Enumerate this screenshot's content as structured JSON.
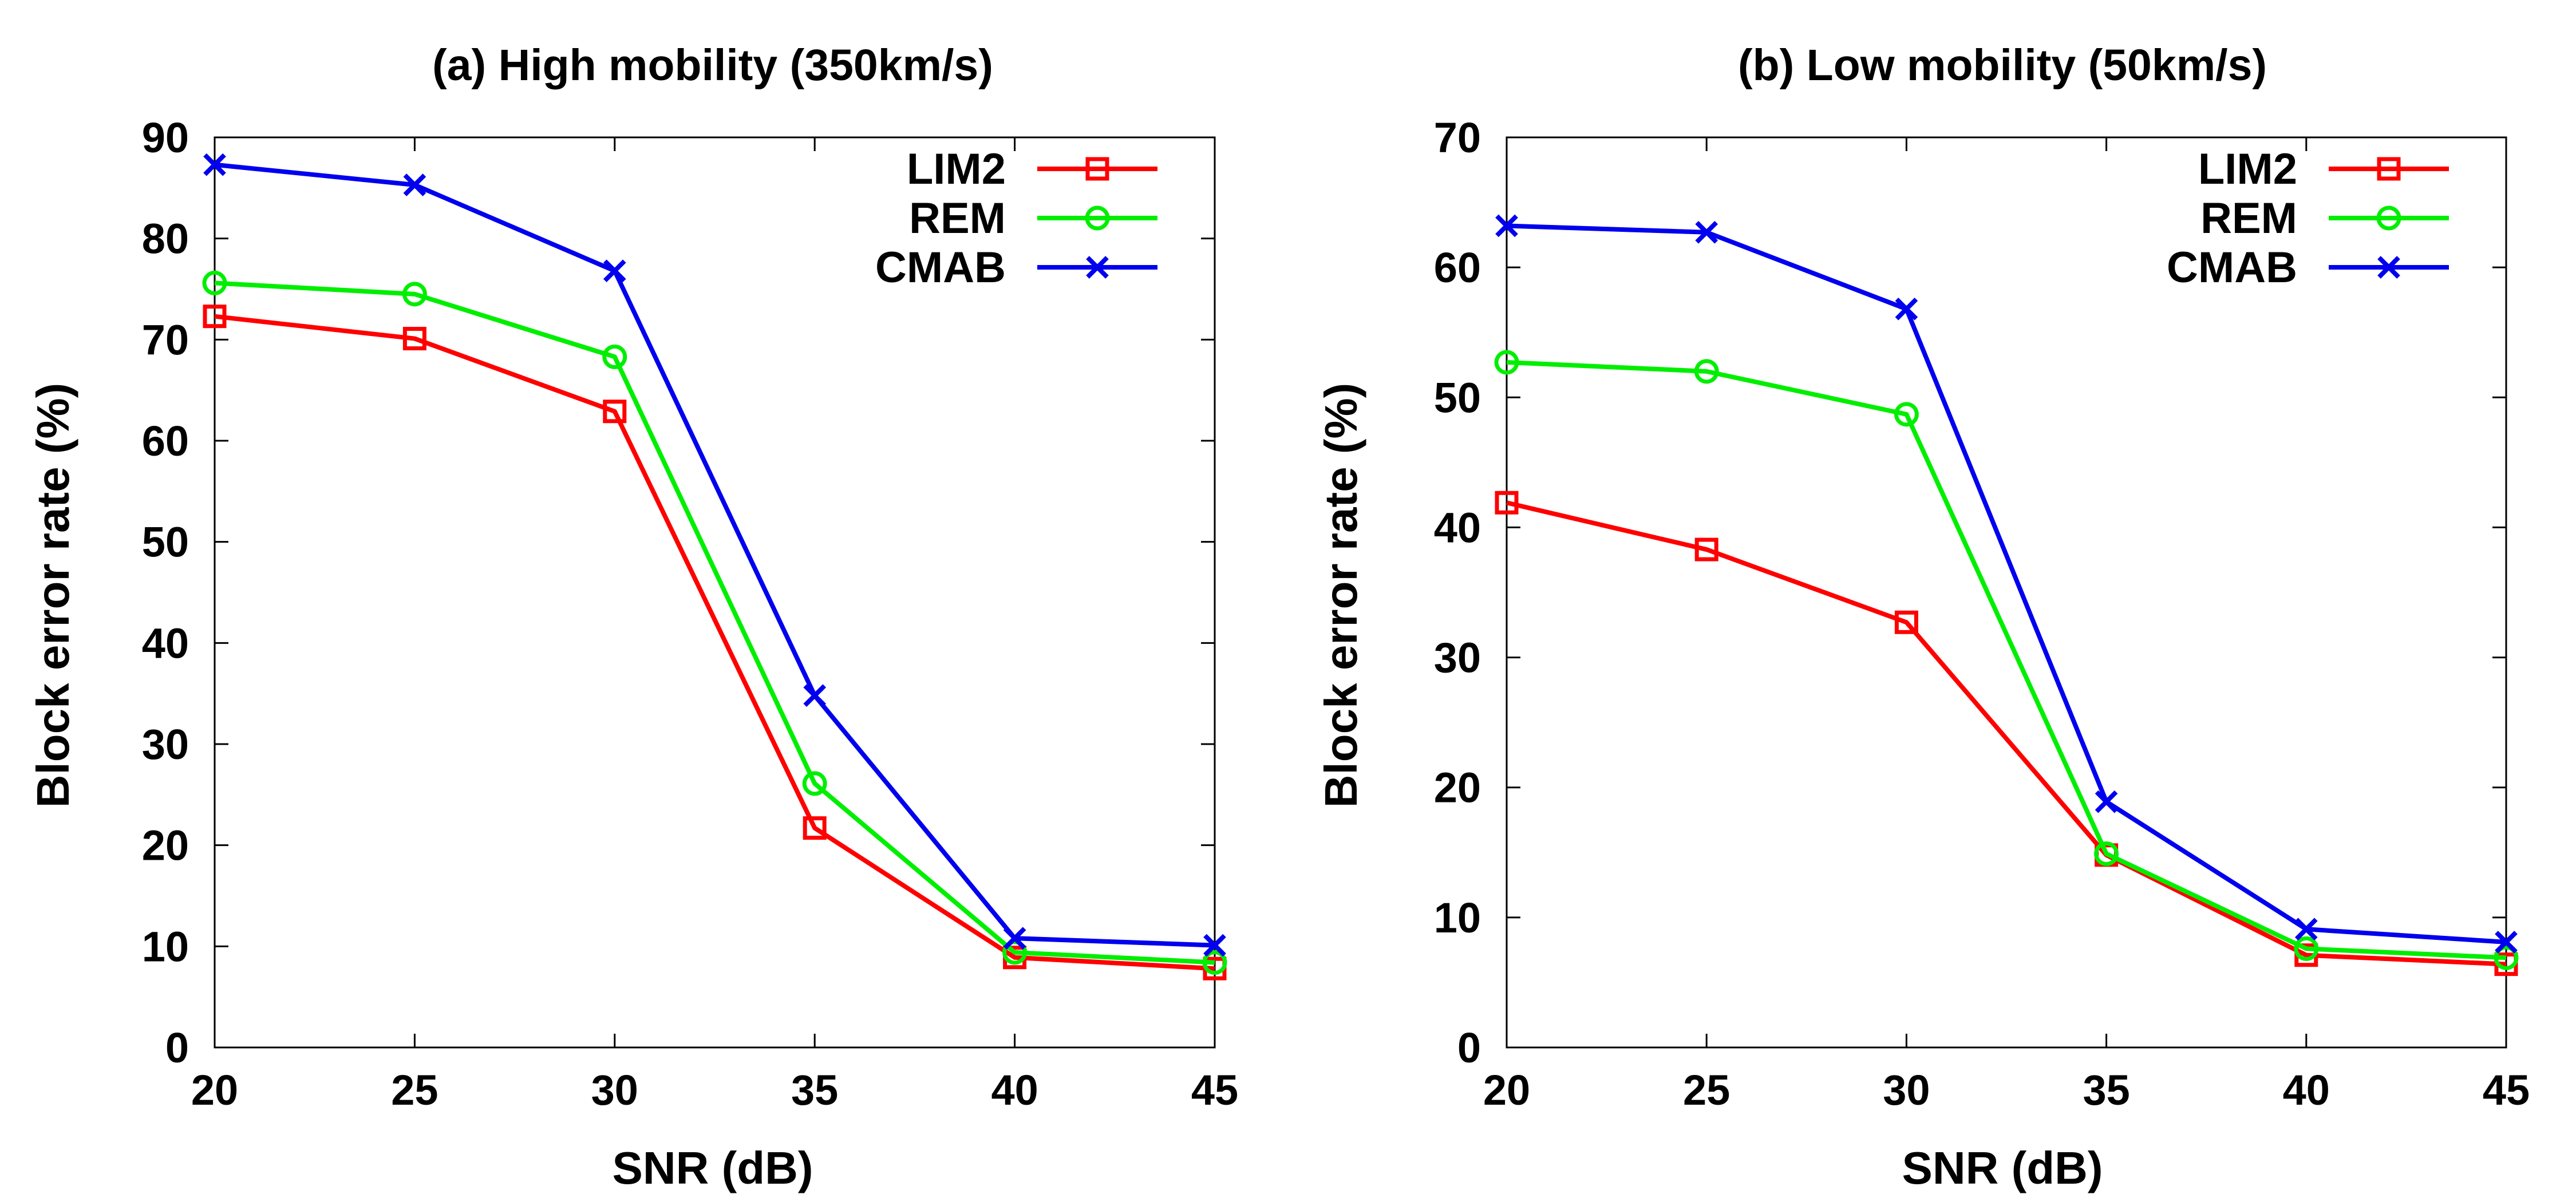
{
  "chart_data": [
    {
      "type": "line",
      "title": "(a) High mobility (350km/s)",
      "xlabel": "SNR (dB)",
      "ylabel": "Block error rate (%)",
      "x": [
        20,
        25,
        30,
        35,
        40,
        45
      ],
      "xlim": [
        20,
        45
      ],
      "ylim": [
        0,
        90
      ],
      "xticks": [
        20,
        25,
        30,
        35,
        40,
        45
      ],
      "yticks": [
        0,
        10,
        20,
        30,
        40,
        50,
        60,
        70,
        80,
        90
      ],
      "legend_position": "top-right",
      "series": [
        {
          "name": "LIM2",
          "color": "#ff0000",
          "marker": "square",
          "values": [
            72.3,
            70.1,
            62.9,
            21.7,
            8.9,
            7.8
          ]
        },
        {
          "name": "REM",
          "color": "#00ee00",
          "marker": "circle",
          "values": [
            75.6,
            74.5,
            68.3,
            26.1,
            9.4,
            8.4
          ]
        },
        {
          "name": "CMAB",
          "color": "#0000ee",
          "marker": "cross",
          "values": [
            87.3,
            85.3,
            76.8,
            34.8,
            10.8,
            10.1
          ]
        }
      ]
    },
    {
      "type": "line",
      "title": "(b) Low mobility (50km/s)",
      "xlabel": "SNR (dB)",
      "ylabel": "Block error rate (%)",
      "x": [
        20,
        25,
        30,
        35,
        40,
        45
      ],
      "xlim": [
        20,
        45
      ],
      "ylim": [
        0,
        70
      ],
      "xticks": [
        20,
        25,
        30,
        35,
        40,
        45
      ],
      "yticks": [
        0,
        10,
        20,
        30,
        40,
        50,
        60,
        70
      ],
      "legend_position": "top-right",
      "series": [
        {
          "name": "LIM2",
          "color": "#ff0000",
          "marker": "square",
          "values": [
            41.9,
            38.3,
            32.7,
            14.8,
            7.1,
            6.4
          ]
        },
        {
          "name": "REM",
          "color": "#00ee00",
          "marker": "circle",
          "values": [
            52.7,
            52.0,
            48.7,
            14.9,
            7.6,
            6.9
          ]
        },
        {
          "name": "CMAB",
          "color": "#0000ee",
          "marker": "cross",
          "values": [
            63.2,
            62.7,
            56.8,
            18.9,
            9.1,
            8.1
          ]
        }
      ]
    }
  ]
}
